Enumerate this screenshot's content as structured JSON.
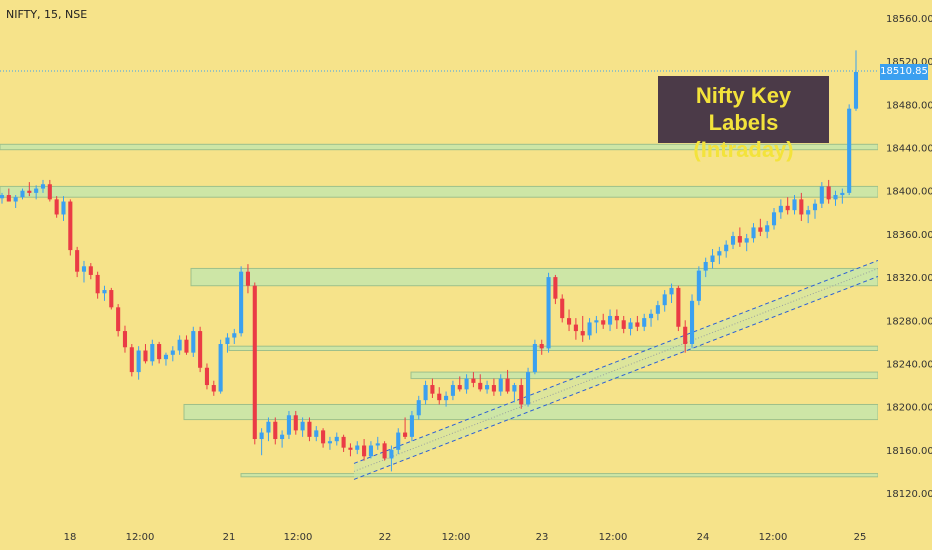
{
  "header": {
    "symbol_label": "NIFTY, 15, NSE"
  },
  "annotation": {
    "line1": "Nifty Key Labels",
    "line2": "(Intraday)"
  },
  "last_price": "18510.85",
  "colors": {
    "background": "#f6e38a",
    "up": "#3ba0f0",
    "down": "#ea3b45",
    "zone": "#cde6a6",
    "annotation_bg": "#4b3a48",
    "annotation_text": "#f3e33b",
    "channel": "#2c5fd6"
  },
  "chart_data": {
    "type": "candlestick",
    "title": "",
    "xlabel": "",
    "ylabel": "",
    "ylim": [
      18100,
      18570
    ],
    "y_ticks": [
      "18560.00",
      "18520.00",
      "18480.00",
      "18440.00",
      "18400.00",
      "18360.00",
      "18320.00",
      "18280.00",
      "18240.00",
      "18200.00",
      "18160.00",
      "18120.00"
    ],
    "x_ticks": [
      "18",
      "12:00",
      "21",
      "12:00",
      "22",
      "12:00",
      "23",
      "12:00",
      "24",
      "12:00",
      "25"
    ],
    "key_levels": [
      {
        "low": 18438,
        "high": 18443,
        "from": "start",
        "to": "end"
      },
      {
        "low": 18394,
        "high": 18404,
        "from": "start",
        "to": "end"
      },
      {
        "low": 18312,
        "high": 18328,
        "from": "20 09:15",
        "to": "end"
      },
      {
        "low": 18252,
        "high": 18256,
        "from": "21 09:15",
        "to": "end"
      },
      {
        "low": 18226,
        "high": 18232,
        "from": "22 11:00",
        "to": "end"
      },
      {
        "low": 18188,
        "high": 18202,
        "from": "20 09:15",
        "to": "end"
      },
      {
        "low": 18135,
        "high": 18138,
        "from": "21 09:15",
        "to": "end"
      }
    ],
    "channel": {
      "start": {
        "time": "21 13:00",
        "price": 18140
      },
      "end": {
        "time": "25 10:00",
        "price": 18328
      }
    },
    "candles": [
      [
        18393,
        18398,
        18388,
        18396
      ],
      [
        18396,
        18402,
        18390,
        18390
      ],
      [
        18390,
        18396,
        18384,
        18394
      ],
      [
        18394,
        18402,
        18392,
        18400
      ],
      [
        18400,
        18408,
        18395,
        18398
      ],
      [
        18398,
        18405,
        18392,
        18402
      ],
      [
        18402,
        18410,
        18398,
        18406
      ],
      [
        18406,
        18410,
        18390,
        18392
      ],
      [
        18392,
        18395,
        18375,
        18378
      ],
      [
        18378,
        18395,
        18372,
        18390
      ],
      [
        18390,
        18392,
        18340,
        18345
      ],
      [
        18345,
        18348,
        18320,
        18325
      ],
      [
        18325,
        18335,
        18315,
        18330
      ],
      [
        18330,
        18333,
        18318,
        18322
      ],
      [
        18322,
        18325,
        18300,
        18305
      ],
      [
        18305,
        18312,
        18298,
        18308
      ],
      [
        18308,
        18310,
        18290,
        18292
      ],
      [
        18292,
        18295,
        18265,
        18270
      ],
      [
        18270,
        18275,
        18250,
        18255
      ],
      [
        18255,
        18258,
        18228,
        18232
      ],
      [
        18232,
        18256,
        18225,
        18252
      ],
      [
        18252,
        18258,
        18240,
        18242
      ],
      [
        18242,
        18262,
        18238,
        18258
      ],
      [
        18258,
        18260,
        18240,
        18244
      ],
      [
        18244,
        18250,
        18238,
        18248
      ],
      [
        18248,
        18256,
        18242,
        18252
      ],
      [
        18252,
        18266,
        18248,
        18262
      ],
      [
        18262,
        18266,
        18248,
        18250
      ],
      [
        18250,
        18274,
        18246,
        18270
      ],
      [
        18270,
        18274,
        18232,
        18236
      ],
      [
        18236,
        18240,
        18216,
        18220
      ],
      [
        18220,
        18224,
        18210,
        18214
      ],
      [
        18214,
        18262,
        18212,
        18258
      ],
      [
        18258,
        18268,
        18250,
        18264
      ],
      [
        18264,
        18272,
        18258,
        18268
      ],
      [
        18268,
        18330,
        18265,
        18325
      ],
      [
        18325,
        18332,
        18305,
        18312
      ],
      [
        18312,
        18315,
        18165,
        18170
      ],
      [
        18170,
        18180,
        18155,
        18176
      ],
      [
        18176,
        18190,
        18168,
        18186
      ],
      [
        18186,
        18190,
        18165,
        18170
      ],
      [
        18170,
        18178,
        18162,
        18174
      ],
      [
        18174,
        18196,
        18170,
        18192
      ],
      [
        18192,
        18196,
        18174,
        18178
      ],
      [
        18178,
        18190,
        18172,
        18186
      ],
      [
        18186,
        18190,
        18168,
        18172
      ],
      [
        18172,
        18182,
        18168,
        18178
      ],
      [
        18178,
        18180,
        18162,
        18166
      ],
      [
        18166,
        18172,
        18160,
        18168
      ],
      [
        18168,
        18176,
        18164,
        18172
      ],
      [
        18172,
        18174,
        18158,
        18162
      ],
      [
        18162,
        18166,
        18154,
        18160
      ],
      [
        18160,
        18168,
        18156,
        18164
      ],
      [
        18164,
        18170,
        18150,
        18154
      ],
      [
        18154,
        18168,
        18152,
        18164
      ],
      [
        18164,
        18172,
        18160,
        18166
      ],
      [
        18166,
        18168,
        18150,
        18152
      ],
      [
        18152,
        18164,
        18140,
        18160
      ],
      [
        18160,
        18180,
        18156,
        18176
      ],
      [
        18176,
        18190,
        18170,
        18172
      ],
      [
        18172,
        18196,
        18168,
        18192
      ],
      [
        18192,
        18210,
        18188,
        18206
      ],
      [
        18206,
        18224,
        18202,
        18220
      ],
      [
        18220,
        18226,
        18208,
        18212
      ],
      [
        18212,
        18218,
        18202,
        18206
      ],
      [
        18206,
        18214,
        18200,
        18210
      ],
      [
        18210,
        18224,
        18206,
        18220
      ],
      [
        18220,
        18228,
        18214,
        18216
      ],
      [
        18216,
        18230,
        18212,
        18226
      ],
      [
        18226,
        18232,
        18218,
        18222
      ],
      [
        18222,
        18230,
        18214,
        18216
      ],
      [
        18216,
        18224,
        18212,
        18220
      ],
      [
        18220,
        18226,
        18210,
        18214
      ],
      [
        18214,
        18230,
        18210,
        18226
      ],
      [
        18226,
        18234,
        18212,
        18214
      ],
      [
        18214,
        18222,
        18204,
        18220
      ],
      [
        18220,
        18226,
        18198,
        18202
      ],
      [
        18202,
        18236,
        18200,
        18232
      ],
      [
        18232,
        18262,
        18230,
        18258
      ],
      [
        18258,
        18262,
        18248,
        18254
      ],
      [
        18254,
        18324,
        18250,
        18320
      ],
      [
        18320,
        18322,
        18295,
        18300
      ],
      [
        18300,
        18304,
        18278,
        18282
      ],
      [
        18282,
        18290,
        18270,
        18276
      ],
      [
        18276,
        18282,
        18262,
        18270
      ],
      [
        18270,
        18284,
        18260,
        18266
      ],
      [
        18266,
        18282,
        18262,
        18278
      ],
      [
        18278,
        18284,
        18268,
        18280
      ],
      [
        18280,
        18286,
        18272,
        18276
      ],
      [
        18276,
        18290,
        18270,
        18284
      ],
      [
        18284,
        18290,
        18272,
        18280
      ],
      [
        18280,
        18284,
        18268,
        18272
      ],
      [
        18272,
        18282,
        18266,
        18278
      ],
      [
        18278,
        18284,
        18270,
        18274
      ],
      [
        18274,
        18286,
        18270,
        18282
      ],
      [
        18282,
        18290,
        18274,
        18286
      ],
      [
        18286,
        18298,
        18280,
        18294
      ],
      [
        18294,
        18308,
        18288,
        18304
      ],
      [
        18304,
        18314,
        18296,
        18310
      ],
      [
        18310,
        18312,
        18270,
        18274
      ],
      [
        18274,
        18280,
        18250,
        18258
      ],
      [
        18258,
        18304,
        18254,
        18298
      ],
      [
        18298,
        18330,
        18294,
        18326
      ],
      [
        18326,
        18338,
        18320,
        18334
      ],
      [
        18334,
        18346,
        18328,
        18340
      ],
      [
        18340,
        18348,
        18332,
        18344
      ],
      [
        18344,
        18354,
        18338,
        18350
      ],
      [
        18350,
        18362,
        18346,
        18358
      ],
      [
        18358,
        18366,
        18348,
        18352
      ],
      [
        18352,
        18360,
        18344,
        18356
      ],
      [
        18356,
        18370,
        18352,
        18366
      ],
      [
        18366,
        18374,
        18358,
        18362
      ],
      [
        18362,
        18372,
        18356,
        18368
      ],
      [
        18368,
        18384,
        18364,
        18380
      ],
      [
        18380,
        18392,
        18374,
        18386
      ],
      [
        18386,
        18394,
        18378,
        18382
      ],
      [
        18382,
        18396,
        18378,
        18392
      ],
      [
        18392,
        18398,
        18372,
        18378
      ],
      [
        18378,
        18386,
        18370,
        18382
      ],
      [
        18382,
        18392,
        18374,
        18388
      ],
      [
        18388,
        18408,
        18384,
        18404
      ],
      [
        18404,
        18410,
        18388,
        18392
      ],
      [
        18392,
        18400,
        18386,
        18396
      ],
      [
        18396,
        18402,
        18388,
        18398
      ],
      [
        18398,
        18480,
        18396,
        18476
      ],
      [
        18476,
        18530,
        18474,
        18510
      ]
    ]
  }
}
